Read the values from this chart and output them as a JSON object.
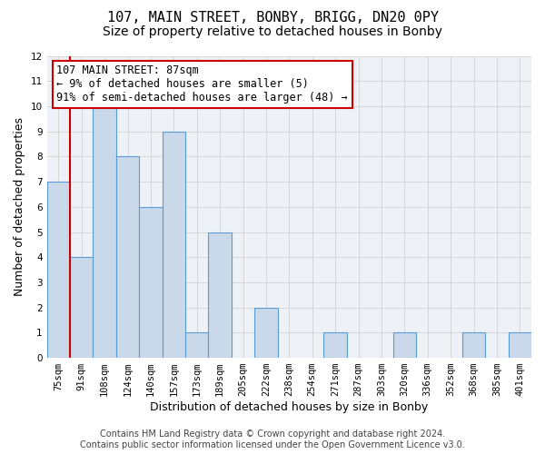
{
  "title": "107, MAIN STREET, BONBY, BRIGG, DN20 0PY",
  "subtitle": "Size of property relative to detached houses in Bonby",
  "xlabel": "Distribution of detached houses by size in Bonby",
  "ylabel": "Number of detached properties",
  "categories": [
    "75sqm",
    "91sqm",
    "108sqm",
    "124sqm",
    "140sqm",
    "157sqm",
    "173sqm",
    "189sqm",
    "205sqm",
    "222sqm",
    "238sqm",
    "254sqm",
    "271sqm",
    "287sqm",
    "303sqm",
    "320sqm",
    "336sqm",
    "352sqm",
    "368sqm",
    "385sqm",
    "401sqm"
  ],
  "values": [
    7,
    4,
    10,
    8,
    6,
    9,
    1,
    5,
    0,
    2,
    0,
    0,
    1,
    0,
    0,
    1,
    0,
    0,
    1,
    0,
    1
  ],
  "bar_color": "#c9d9ea",
  "bar_edge_color": "#5b9bd5",
  "red_line_color": "#cc0000",
  "ylim": [
    0,
    12
  ],
  "yticks": [
    0,
    1,
    2,
    3,
    4,
    5,
    6,
    7,
    8,
    9,
    10,
    11,
    12
  ],
  "grid_color": "#cccccc",
  "background_color": "#eef2f7",
  "annotation_text": "107 MAIN STREET: 87sqm\n← 9% of detached houses are smaller (5)\n91% of semi-detached houses are larger (48) →",
  "annotation_box_edge_color": "#cc0000",
  "footer_text": "Contains HM Land Registry data © Crown copyright and database right 2024.\nContains public sector information licensed under the Open Government Licence v3.0.",
  "title_fontsize": 11,
  "subtitle_fontsize": 10,
  "xlabel_fontsize": 9,
  "ylabel_fontsize": 9,
  "tick_fontsize": 7.5,
  "annotation_fontsize": 8.5,
  "footer_fontsize": 7
}
